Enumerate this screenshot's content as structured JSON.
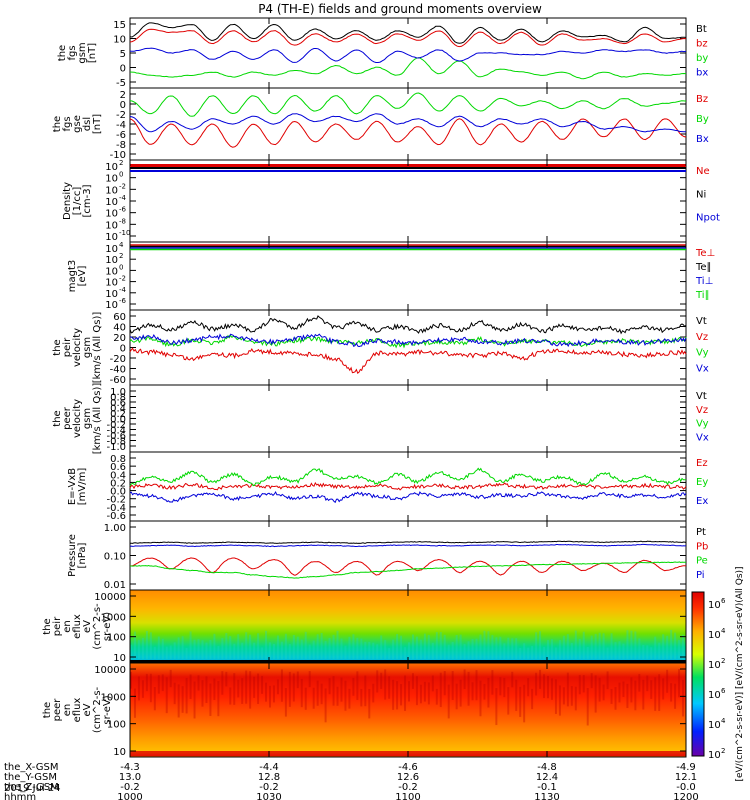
{
  "title": "P4 (TH-E) fields and ground moments overview",
  "colors": {
    "black": "#000000",
    "red": "#e00000",
    "green": "#00d800",
    "blue": "#0000d8"
  },
  "chart_data": [
    {
      "type": "line",
      "ylabel": [
        "the",
        "fgs",
        "gsm",
        "[nT]"
      ],
      "yticks": [
        "15",
        "10",
        "5",
        "0",
        "-5"
      ],
      "ylim": [
        -6,
        16
      ],
      "series": [
        {
          "name": "Bt",
          "color": "black",
          "values": [
            10.0,
            14.5,
            13.0,
            14.0,
            9.0,
            14.0,
            9.5,
            14.0,
            9.0,
            12.5,
            9.5,
            12.0,
            9.0,
            12.0,
            10.0,
            13.5,
            8.0,
            13.0,
            9.0,
            12.5,
            8.5,
            12.0,
            10.0,
            10.5,
            8.5,
            13.0,
            9.5,
            10.0
          ]
        },
        {
          "name": "bz",
          "color": "red",
          "values": [
            8.5,
            12.5,
            11.5,
            12.0,
            8.0,
            12.0,
            8.5,
            12.0,
            7.5,
            11.0,
            8.5,
            11.0,
            8.0,
            11.0,
            9.0,
            12.0,
            7.0,
            11.5,
            8.0,
            11.5,
            7.5,
            11.0,
            9.0,
            9.5,
            8.0,
            11.0,
            8.5,
            9.5
          ]
        },
        {
          "name": "by",
          "color": "green",
          "values": [
            -1.0,
            -2.0,
            -2.5,
            -2.0,
            -1.0,
            -2.5,
            -1.0,
            -2.0,
            -0.5,
            -1.5,
            1.0,
            -1.5,
            0.5,
            -2.0,
            3.5,
            -1.5,
            2.5,
            -2.5,
            0.0,
            -1.0,
            -2.0,
            -1.0,
            -3.0,
            -1.0,
            -2.5,
            -1.5,
            -2.0,
            -1.5
          ]
        },
        {
          "name": "bx",
          "color": "blue",
          "values": [
            5.5,
            6.5,
            5.0,
            6.0,
            3.0,
            5.5,
            3.0,
            6.0,
            2.0,
            6.5,
            2.5,
            6.0,
            2.0,
            5.5,
            3.5,
            6.0,
            2.5,
            5.0,
            5.0,
            4.5,
            4.5,
            5.5,
            5.0,
            6.0,
            5.5,
            6.0,
            5.0,
            5.5
          ]
        }
      ]
    },
    {
      "type": "line",
      "ylabel": [
        "the",
        "fgs",
        "gse",
        "dsl",
        "[nT]"
      ],
      "yticks": [
        "2",
        "0",
        "-2",
        "-4",
        "-6",
        "-8",
        "-10"
      ],
      "ylim": [
        -11,
        3
      ],
      "series": [
        {
          "name": "Bz",
          "color": "red",
          "values": [
            -3.0,
            -8.0,
            -4.0,
            -8.0,
            -4.0,
            -8.5,
            -4.0,
            -8.0,
            -3.5,
            -7.5,
            -4.0,
            -7.0,
            -3.5,
            -7.5,
            -4.5,
            -8.0,
            -3.0,
            -8.0,
            -4.0,
            -7.5,
            -3.5,
            -7.0,
            -3.0,
            -6.5,
            -3.0,
            -7.0,
            -3.0,
            -6.5
          ]
        },
        {
          "name": "By",
          "color": "green",
          "values": [
            0.5,
            -2.0,
            1.5,
            -2.5,
            1.5,
            -2.0,
            1.5,
            -2.0,
            1.5,
            -1.5,
            1.5,
            -2.0,
            1.5,
            -1.0,
            2.0,
            -1.5,
            1.5,
            -1.5,
            1.0,
            -0.5,
            0.5,
            -1.0,
            0.5,
            -1.0,
            1.0,
            -0.5,
            0.0,
            0.5
          ]
        },
        {
          "name": "Bx",
          "color": "blue",
          "values": [
            -2.5,
            -5.5,
            -3.5,
            -5.0,
            -3.0,
            -4.0,
            -2.5,
            -4.0,
            -2.0,
            -3.5,
            -2.5,
            -3.5,
            -2.0,
            -4.0,
            -3.0,
            -4.5,
            -2.5,
            -4.5,
            -3.0,
            -4.0,
            -3.0,
            -4.5,
            -3.5,
            -5.0,
            -4.5,
            -5.5,
            -5.0,
            -5.5
          ]
        }
      ]
    },
    {
      "type": "line",
      "scale": "log",
      "ylabel": [
        "Density",
        "[1/cc]",
        "[cm-3]"
      ],
      "yticks": [
        "10",
        "10",
        "10",
        "10",
        "10",
        "10",
        "10"
      ],
      "ytick_exponents": [
        "2",
        "0",
        "-2",
        "-4",
        "-6",
        "-8",
        "-10"
      ],
      "series": [
        {
          "name": "Ne",
          "color": "red",
          "values": [
            4,
            4,
            4,
            4,
            4,
            4,
            4,
            4
          ]
        },
        {
          "name": "Ni",
          "color": "black",
          "values": [
            3,
            3,
            3,
            3,
            3,
            3,
            3,
            3
          ]
        },
        {
          "name": "Npot",
          "color": "blue",
          "values": [
            1.5,
            1.5,
            1.5,
            1.5,
            1.5,
            1.5,
            1.5,
            1.5
          ]
        }
      ]
    },
    {
      "type": "line",
      "scale": "log",
      "ylabel": [
        "magt3",
        "[eV]"
      ],
      "yticks": [
        "10",
        "10",
        "10",
        "10",
        "10",
        "10"
      ],
      "ytick_exponents": [
        "4",
        "2",
        "0",
        "-2",
        "-4",
        "-6"
      ],
      "series": [
        {
          "name": "Te⊥",
          "color": "red",
          "values": [
            1500,
            1500,
            1500,
            1500
          ]
        },
        {
          "name": "Te∥",
          "color": "black",
          "values": [
            1800,
            1800,
            1800,
            1800
          ]
        },
        {
          "name": "Ti⊥",
          "color": "blue",
          "values": [
            4000,
            4000,
            4000,
            4000
          ]
        },
        {
          "name": "Ti∥",
          "color": "green",
          "values": [
            5000,
            5000,
            5000,
            5000
          ]
        }
      ]
    },
    {
      "type": "line",
      "ylabel": [
        "the",
        "peir",
        "velocity",
        "gsm",
        "[km/s (All Qs)]"
      ],
      "yticks": [
        "60",
        "40",
        "20",
        "0",
        "-20",
        "-40",
        "-60"
      ],
      "ylim": [
        -65,
        65
      ],
      "series": [
        {
          "name": "Vt",
          "color": "black",
          "values": [
            28,
            40,
            30,
            45,
            32,
            38,
            30,
            48,
            35,
            52,
            34,
            42,
            30,
            36,
            28,
            38,
            30,
            44,
            30,
            40,
            28,
            38,
            30,
            34,
            28,
            36,
            30,
            38
          ]
        },
        {
          "name": "Vz",
          "color": "red",
          "values": [
            -5,
            -8,
            -12,
            -20,
            -10,
            -14,
            -6,
            -8,
            -10,
            -12,
            -20,
            -42,
            -10,
            -12,
            -8,
            -10,
            -12,
            -14,
            -10,
            -20,
            -8,
            -6,
            -10,
            -8,
            -12,
            -14,
            -10,
            -8
          ]
        },
        {
          "name": "Vy",
          "color": "green",
          "values": [
            10,
            15,
            5,
            12,
            8,
            18,
            10,
            6,
            12,
            15,
            10,
            8,
            12,
            4,
            6,
            10,
            8,
            14,
            6,
            10,
            12,
            8,
            5,
            10,
            12,
            8,
            10,
            15
          ]
        },
        {
          "name": "Vx",
          "color": "blue",
          "values": [
            15,
            20,
            8,
            12,
            18,
            20,
            12,
            10,
            15,
            20,
            10,
            5,
            12,
            10,
            8,
            12,
            15,
            10,
            8,
            12,
            10,
            6,
            8,
            12,
            10,
            8,
            12,
            14
          ]
        }
      ]
    },
    {
      "type": "line",
      "ylabel": [
        "the",
        "peer",
        "velocity",
        "gsm",
        "[km/s (All Qs)]"
      ],
      "yticks": [
        "1.0",
        "0.8",
        "0.6",
        "0.4",
        "0.2",
        "0.0",
        "-0.2",
        "-0.4",
        "-0.6",
        "-0.8",
        "-1.0"
      ],
      "ylim": [
        -1.0,
        1.0
      ],
      "series": [
        {
          "name": "Vt",
          "color": "black",
          "values": []
        },
        {
          "name": "Vz",
          "color": "red",
          "values": []
        },
        {
          "name": "Vy",
          "color": "green",
          "values": []
        },
        {
          "name": "Vx",
          "color": "blue",
          "values": []
        }
      ]
    },
    {
      "type": "line",
      "ylabel": [
        "E=-VxB",
        "[mV/m]"
      ],
      "yticks": [
        "0.8",
        "0.6",
        "0.4",
        "0.2",
        "0.0",
        "-0.2",
        "-0.4",
        "-0.6"
      ],
      "ylim": [
        -0.62,
        0.82
      ],
      "series": [
        {
          "name": "Ez",
          "color": "red",
          "values": [
            0.1,
            0.12,
            0.08,
            0.14,
            0.06,
            0.1,
            0.12,
            0.08,
            0.1,
            0.14,
            0.1,
            0.08,
            0.12,
            0.06,
            0.1,
            0.12,
            0.08,
            0.1,
            0.14,
            0.1,
            0.08,
            0.12,
            0.1,
            0.08,
            0.1,
            0.12,
            0.1,
            0.08
          ]
        },
        {
          "name": "Ey",
          "color": "green",
          "values": [
            0.15,
            0.3,
            0.22,
            0.4,
            0.2,
            0.35,
            0.15,
            0.3,
            0.2,
            0.45,
            0.25,
            0.3,
            0.18,
            0.35,
            0.2,
            0.4,
            0.25,
            0.45,
            0.2,
            0.35,
            0.22,
            0.3,
            0.15,
            0.38,
            0.2,
            0.3,
            0.18,
            0.25
          ]
        },
        {
          "name": "Ex",
          "color": "blue",
          "values": [
            -0.05,
            -0.1,
            -0.2,
            -0.1,
            -0.05,
            -0.15,
            -0.1,
            -0.05,
            -0.15,
            -0.1,
            -0.2,
            -0.05,
            -0.1,
            -0.15,
            -0.05,
            -0.1,
            -0.05,
            -0.12,
            -0.08,
            -0.1,
            -0.05,
            -0.1,
            -0.15,
            -0.05,
            -0.1,
            -0.08,
            -0.12,
            -0.05
          ]
        }
      ]
    },
    {
      "type": "line",
      "scale": "log",
      "ylabel": [
        "Pressure",
        "[nPa]"
      ],
      "yticks": [
        "1.00",
        "0.10",
        "0.01"
      ],
      "ylim": [
        0.01,
        1.2
      ],
      "series": [
        {
          "name": "Pt",
          "color": "black",
          "values": [
            0.28,
            0.29,
            0.3,
            0.28,
            0.29,
            0.3,
            0.29,
            0.28,
            0.29,
            0.3,
            0.29,
            0.28,
            0.29,
            0.3,
            0.31,
            0.3,
            0.29,
            0.3,
            0.31,
            0.3,
            0.31,
            0.32,
            0.31,
            0.3,
            0.31,
            0.32,
            0.31,
            0.3
          ]
        },
        {
          "name": "Pb",
          "color": "red",
          "values": [
            0.05,
            0.09,
            0.04,
            0.09,
            0.03,
            0.09,
            0.04,
            0.08,
            0.025,
            0.07,
            0.03,
            0.07,
            0.025,
            0.07,
            0.035,
            0.08,
            0.03,
            0.07,
            0.025,
            0.07,
            0.03,
            0.07,
            0.035,
            0.06,
            0.03,
            0.075,
            0.035,
            0.05
          ]
        },
        {
          "name": "Pe",
          "color": "green",
          "values": [
            0.05,
            0.05,
            0.04,
            0.035,
            0.03,
            0.03,
            0.025,
            0.022,
            0.02,
            0.022,
            0.025,
            0.03,
            0.032,
            0.035,
            0.04,
            0.042,
            0.045,
            0.048,
            0.05,
            0.052,
            0.055,
            0.056,
            0.058,
            0.06,
            0.062,
            0.064,
            0.065,
            0.066
          ]
        },
        {
          "name": "Pi",
          "color": "blue",
          "values": [
            0.22,
            0.23,
            0.24,
            0.22,
            0.23,
            0.24,
            0.23,
            0.22,
            0.23,
            0.24,
            0.23,
            0.22,
            0.23,
            0.24,
            0.24,
            0.23,
            0.23,
            0.24,
            0.24,
            0.23,
            0.24,
            0.25,
            0.24,
            0.23,
            0.24,
            0.25,
            0.24,
            0.23
          ]
        }
      ]
    },
    {
      "type": "heatmap",
      "ylabel": [
        "the",
        "peir",
        "en",
        "eflux",
        "eV",
        "(cm^2-s-",
        "sr-eV)"
      ],
      "yticks": [
        "10000",
        "1000",
        "100",
        "10"
      ]
    },
    {
      "type": "heatmap",
      "ylabel": [
        "the",
        "peer",
        "en",
        "eflux",
        "eV",
        "(cm^2-s-",
        "sr-eV)"
      ],
      "yticks": [
        "10000",
        "1000",
        "100",
        "10"
      ]
    }
  ],
  "colorbar": {
    "ticks": [
      "10",
      "10",
      "10",
      "10",
      "10",
      "10"
    ],
    "tick_exponents": [
      "6",
      "4",
      "2",
      "6",
      "4",
      "2"
    ],
    "label": "[eV/(cm^2-s-sr-eV)] [eV/(cm^2-s-sr-eV)(All Qs)]"
  },
  "footer": {
    "rows": [
      {
        "label": "the_X-GSM",
        "values": [
          "-4.3",
          "-4.4",
          "-4.6",
          "-4.8",
          "-4.9"
        ]
      },
      {
        "label": "the_Y-GSM",
        "values": [
          "13.0",
          "12.8",
          "12.6",
          "12.4",
          "12.1"
        ]
      },
      {
        "label": "the_Z-GSM",
        "values": [
          "-0.2",
          "-0.2",
          "-0.2",
          "-0.1",
          "-0.0"
        ]
      },
      {
        "label": "hhmm",
        "values": [
          "1000",
          "1030",
          "1100",
          "1130",
          "1200"
        ]
      }
    ],
    "date": "2019 Jul 24"
  }
}
